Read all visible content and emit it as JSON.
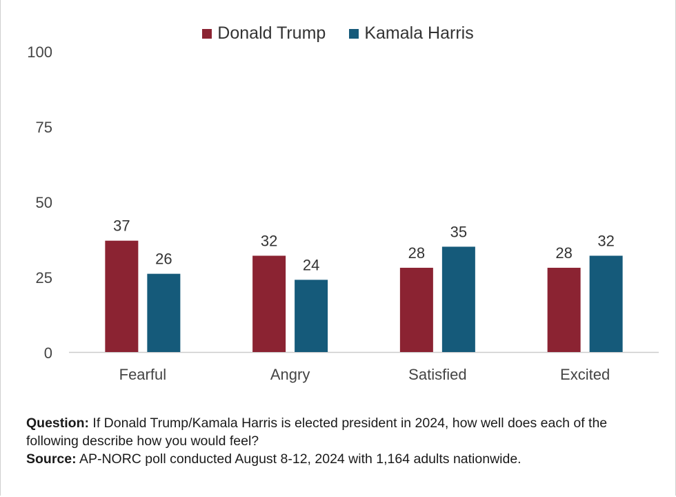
{
  "chart_data": {
    "type": "bar",
    "categories": [
      "Fearful",
      "Angry",
      "Satisfied",
      "Excited"
    ],
    "series": [
      {
        "name": "Donald Trump",
        "values": [
          37,
          32,
          28,
          28
        ],
        "color": "#8b2332"
      },
      {
        "name": "Kamala Harris",
        "values": [
          26,
          24,
          35,
          32
        ],
        "color": "#155a7a"
      }
    ],
    "yticks": [
      0,
      25,
      50,
      75,
      100
    ],
    "ylim": [
      0,
      100
    ],
    "grid": false,
    "legend_position": "top-center"
  },
  "footnote": {
    "question_label": "Question:",
    "question_text": "If Donald Trump/Kamala Harris is elected president in 2024, how well does each of the following describe how you would feel?",
    "source_label": "Source:",
    "source_text": "AP-NORC poll conducted August 8-12, 2024 with 1,164 adults nationwide."
  }
}
